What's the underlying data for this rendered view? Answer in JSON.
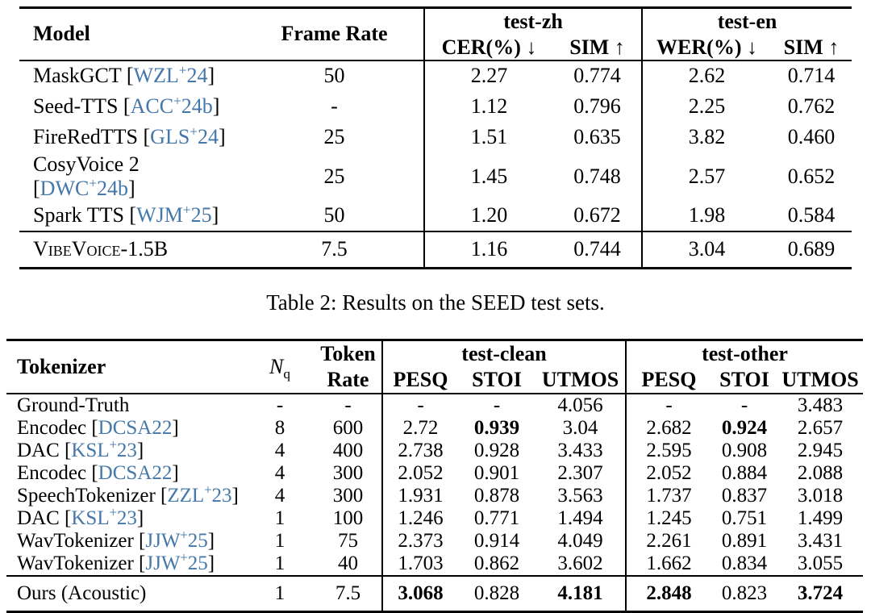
{
  "page": {
    "background": "#ffffff",
    "text_color": "#000000",
    "citation_color": "#4477aa"
  },
  "seed_table": {
    "caption": "Table 2: Results on the SEED test sets.",
    "headers": {
      "model": "Model",
      "frame_rate": "Frame Rate",
      "group_zh": "test-zh",
      "cer": "CER(%) ↓",
      "sim_zh": "SIM ↑",
      "group_en": "test-en",
      "wer": "WER(%) ↓",
      "sim_en": "SIM ↑"
    },
    "rows": [
      {
        "model": "MaskGCT",
        "cite": "WZL+24",
        "frame_rate": "50",
        "values": [
          "2.27",
          "0.774",
          "2.62",
          "0.714"
        ],
        "bold": []
      },
      {
        "model": "Seed-TTS",
        "cite": "ACC+24b",
        "frame_rate": "-",
        "values": [
          "1.12",
          "0.796",
          "2.25",
          "0.762"
        ],
        "bold": []
      },
      {
        "model": "FireRedTTS",
        "cite": "GLS+24",
        "frame_rate": "25",
        "values": [
          "1.51",
          "0.635",
          "3.82",
          "0.460"
        ],
        "bold": []
      },
      {
        "model": "CosyVoice 2",
        "cite": "DWC+24b",
        "frame_rate": "25",
        "values": [
          "1.45",
          "0.748",
          "2.57",
          "0.652"
        ],
        "bold": []
      },
      {
        "model": "Spark TTS",
        "cite": "WJM+25",
        "frame_rate": "50",
        "values": [
          "1.20",
          "0.672",
          "1.98",
          "0.584"
        ],
        "bold": []
      }
    ],
    "highlight_rows": [
      {
        "model": "VibeVoice-1.5B",
        "cite": null,
        "smallcaps": true,
        "frame_rate": "7.5",
        "values": [
          "1.16",
          "0.744",
          "3.04",
          "0.689"
        ],
        "bold": []
      }
    ]
  },
  "tokenizer_table": {
    "headers": {
      "tokenizer": "Tokenizer",
      "nq_base": "N",
      "nq_sub": "q",
      "token_rate_line1": "Token",
      "token_rate_line2": "Rate",
      "group_clean": "test-clean",
      "group_other": "test-other",
      "pesq_clean": "PESQ",
      "stoi_clean": "STOI",
      "utmos_clean": "UTMOS",
      "pesq_other": "PESQ",
      "stoi_other": "STOI",
      "utmos_other": "UTMOS"
    },
    "rows": [
      {
        "tokenizer": "Ground-Truth",
        "cite": null,
        "nq": "-",
        "rate": "-",
        "values": [
          "-",
          "-",
          "4.056",
          "-",
          "-",
          "3.483"
        ],
        "bold": []
      },
      {
        "tokenizer": "Encodec",
        "cite": "DCSA22",
        "nq": "8",
        "rate": "600",
        "values": [
          "2.72",
          "0.939",
          "3.04",
          "2.682",
          "0.924",
          "2.657"
        ],
        "bold": [
          1,
          4
        ]
      },
      {
        "tokenizer": "DAC",
        "cite": "KSL+23",
        "nq": "4",
        "rate": "400",
        "values": [
          "2.738",
          "0.928",
          "3.433",
          "2.595",
          "0.908",
          "2.945"
        ],
        "bold": []
      },
      {
        "tokenizer": "Encodec",
        "cite": "DCSA22",
        "nq": "4",
        "rate": "300",
        "values": [
          "2.052",
          "0.901",
          "2.307",
          "2.052",
          "0.884",
          "2.088"
        ],
        "bold": []
      },
      {
        "tokenizer": "SpeechTokenizer",
        "cite": "ZZL+23",
        "nq": "4",
        "rate": "300",
        "values": [
          "1.931",
          "0.878",
          "3.563",
          "1.737",
          "0.837",
          "3.018"
        ],
        "bold": []
      },
      {
        "tokenizer": "DAC",
        "cite": "KSL+23",
        "nq": "1",
        "rate": "100",
        "values": [
          "1.246",
          "0.771",
          "1.494",
          "1.245",
          "0.751",
          "1.499"
        ],
        "bold": []
      },
      {
        "tokenizer": "WavTokenizer",
        "cite": "JJW+25",
        "nq": "1",
        "rate": "75",
        "values": [
          "2.373",
          "0.914",
          "4.049",
          "2.261",
          "0.891",
          "3.431"
        ],
        "bold": []
      },
      {
        "tokenizer": "WavTokenizer",
        "cite": "JJW+25",
        "nq": "1",
        "rate": "40",
        "values": [
          "1.703",
          "0.862",
          "3.602",
          "1.662",
          "0.834",
          "3.055"
        ],
        "bold": []
      }
    ],
    "highlight_rows": [
      {
        "tokenizer": "Ours (Acoustic)",
        "cite": null,
        "nq": "1",
        "rate": "7.5",
        "values": [
          "3.068",
          "0.828",
          "4.181",
          "2.848",
          "0.823",
          "3.724"
        ],
        "bold": [
          0,
          2,
          3,
          5
        ]
      }
    ]
  }
}
